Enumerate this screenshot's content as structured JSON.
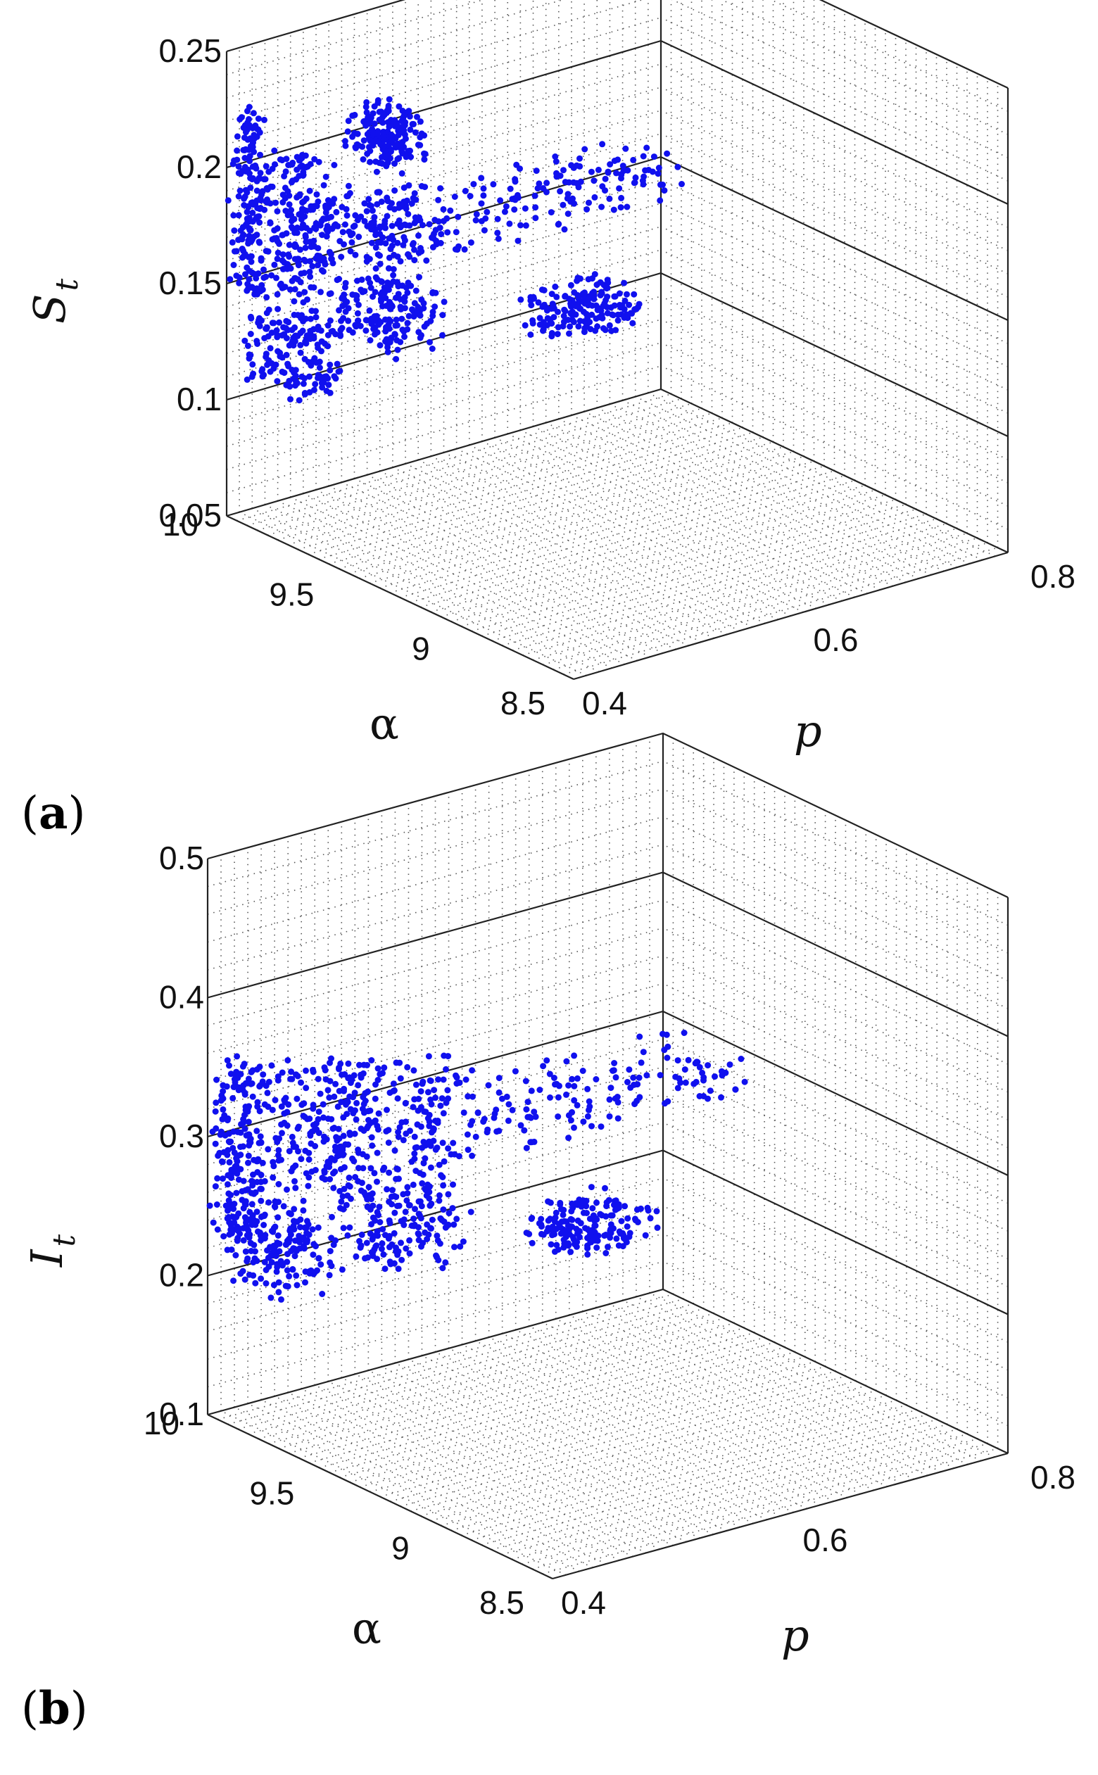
{
  "chart_data": [
    {
      "type": "scatter3d",
      "panel_label": "a",
      "xlabel": "p",
      "ylabel": "α",
      "zlabel": "S",
      "zlabel_sub": "t",
      "xlim": [
        0.4,
        0.8
      ],
      "ylim": [
        8.5,
        10
      ],
      "zlim": [
        0.05,
        0.25
      ],
      "xticks": [
        "0.4",
        "0.6",
        "0.8"
      ],
      "yticks": [
        "8.5",
        "9",
        "9.5",
        "10"
      ],
      "zticks": [
        "0.05",
        "0.1",
        "0.15",
        "0.2",
        "0.25"
      ],
      "grid": true,
      "marker_color": "#1010ee",
      "clusters": [
        {
          "p": [
            0.4,
            0.42
          ],
          "alpha": [
            9.9,
            10.0
          ],
          "z": [
            0.145,
            0.225
          ]
        },
        {
          "p": [
            0.42,
            0.46
          ],
          "alpha": [
            9.8,
            9.98
          ],
          "z": [
            0.145,
            0.205
          ]
        },
        {
          "p": [
            0.44,
            0.54
          ],
          "alpha": [
            9.7,
            9.95
          ],
          "z": [
            0.155,
            0.185
          ]
        },
        {
          "p": [
            0.5,
            0.75
          ],
          "alpha": [
            9.6,
            9.9
          ],
          "z": [
            0.16,
            0.175
          ]
        },
        {
          "p": [
            0.46,
            0.52
          ],
          "alpha": [
            9.6,
            9.85
          ],
          "z": [
            0.125,
            0.15
          ]
        },
        {
          "p": [
            0.58,
            0.66
          ],
          "alpha": [
            9.4,
            9.6
          ],
          "z": [
            0.125,
            0.14
          ]
        },
        {
          "p": [
            0.4,
            0.45
          ],
          "alpha": [
            9.7,
            9.95
          ],
          "z": [
            0.11,
            0.14
          ]
        },
        {
          "p": [
            0.44,
            0.48
          ],
          "alpha": [
            9.5,
            9.7
          ],
          "z": [
            0.215,
            0.235
          ]
        }
      ]
    },
    {
      "type": "scatter3d",
      "panel_label": "b",
      "xlabel": "p",
      "ylabel": "α",
      "zlabel": "I",
      "zlabel_sub": "t",
      "xlim": [
        0.4,
        0.8
      ],
      "ylim": [
        8.5,
        10
      ],
      "zlim": [
        0.1,
        0.5
      ],
      "xticks": [
        "0.4",
        "0.6",
        "0.8"
      ],
      "yticks": [
        "8.5",
        "9",
        "9.5",
        "10"
      ],
      "zticks": [
        "0.1",
        "0.2",
        "0.3",
        "0.4",
        "0.5"
      ],
      "grid": true,
      "marker_color": "#1010ee",
      "clusters": [
        {
          "p": [
            0.4,
            0.43
          ],
          "alpha": [
            9.88,
            10.0
          ],
          "z": [
            0.23,
            0.355
          ]
        },
        {
          "p": [
            0.42,
            0.5
          ],
          "alpha": [
            9.75,
            9.98
          ],
          "z": [
            0.25,
            0.35
          ]
        },
        {
          "p": [
            0.46,
            0.56
          ],
          "alpha": [
            9.6,
            9.9
          ],
          "z": [
            0.27,
            0.345
          ]
        },
        {
          "p": [
            0.52,
            0.78
          ],
          "alpha": [
            9.5,
            9.85
          ],
          "z": [
            0.285,
            0.31
          ]
        },
        {
          "p": [
            0.46,
            0.54
          ],
          "alpha": [
            9.5,
            9.8
          ],
          "z": [
            0.22,
            0.27
          ]
        },
        {
          "p": [
            0.58,
            0.66
          ],
          "alpha": [
            9.3,
            9.55
          ],
          "z": [
            0.22,
            0.245
          ]
        },
        {
          "p": [
            0.4,
            0.46
          ],
          "alpha": [
            9.7,
            9.95
          ],
          "z": [
            0.2,
            0.25
          ]
        }
      ]
    }
  ]
}
